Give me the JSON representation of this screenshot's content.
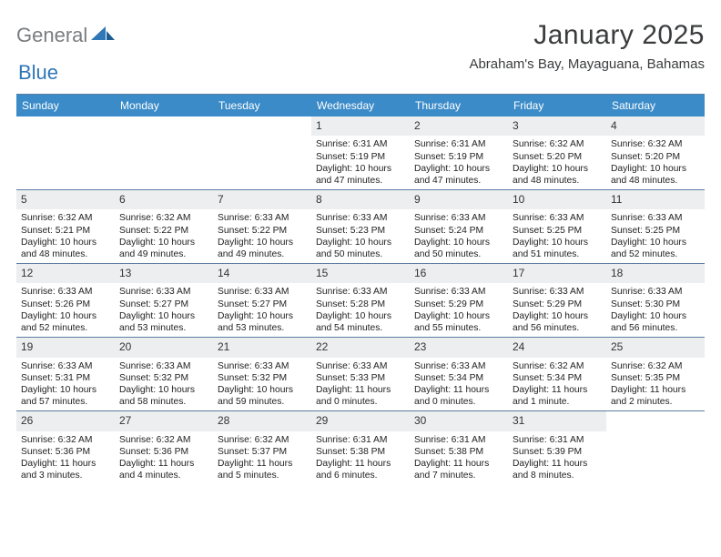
{
  "logo": {
    "text1": "General",
    "text2": "Blue"
  },
  "title": "January 2025",
  "location": "Abraham's Bay, Mayaguana, Bahamas",
  "colors": {
    "header_bg": "#3b8bc8",
    "header_text": "#ffffff",
    "daynum_bg": "#eceeef",
    "rule": "#5c7ea2",
    "logo_gray": "#7a7d80",
    "logo_blue": "#2f77b6"
  },
  "day_headers": [
    "Sunday",
    "Monday",
    "Tuesday",
    "Wednesday",
    "Thursday",
    "Friday",
    "Saturday"
  ],
  "weeks": [
    [
      {
        "empty": true
      },
      {
        "empty": true
      },
      {
        "empty": true
      },
      {
        "num": "1",
        "sunrise": "Sunrise: 6:31 AM",
        "sunset": "Sunset: 5:19 PM",
        "day1": "Daylight: 10 hours",
        "day2": "and 47 minutes."
      },
      {
        "num": "2",
        "sunrise": "Sunrise: 6:31 AM",
        "sunset": "Sunset: 5:19 PM",
        "day1": "Daylight: 10 hours",
        "day2": "and 47 minutes."
      },
      {
        "num": "3",
        "sunrise": "Sunrise: 6:32 AM",
        "sunset": "Sunset: 5:20 PM",
        "day1": "Daylight: 10 hours",
        "day2": "and 48 minutes."
      },
      {
        "num": "4",
        "sunrise": "Sunrise: 6:32 AM",
        "sunset": "Sunset: 5:20 PM",
        "day1": "Daylight: 10 hours",
        "day2": "and 48 minutes."
      }
    ],
    [
      {
        "num": "5",
        "sunrise": "Sunrise: 6:32 AM",
        "sunset": "Sunset: 5:21 PM",
        "day1": "Daylight: 10 hours",
        "day2": "and 48 minutes."
      },
      {
        "num": "6",
        "sunrise": "Sunrise: 6:32 AM",
        "sunset": "Sunset: 5:22 PM",
        "day1": "Daylight: 10 hours",
        "day2": "and 49 minutes."
      },
      {
        "num": "7",
        "sunrise": "Sunrise: 6:33 AM",
        "sunset": "Sunset: 5:22 PM",
        "day1": "Daylight: 10 hours",
        "day2": "and 49 minutes."
      },
      {
        "num": "8",
        "sunrise": "Sunrise: 6:33 AM",
        "sunset": "Sunset: 5:23 PM",
        "day1": "Daylight: 10 hours",
        "day2": "and 50 minutes."
      },
      {
        "num": "9",
        "sunrise": "Sunrise: 6:33 AM",
        "sunset": "Sunset: 5:24 PM",
        "day1": "Daylight: 10 hours",
        "day2": "and 50 minutes."
      },
      {
        "num": "10",
        "sunrise": "Sunrise: 6:33 AM",
        "sunset": "Sunset: 5:25 PM",
        "day1": "Daylight: 10 hours",
        "day2": "and 51 minutes."
      },
      {
        "num": "11",
        "sunrise": "Sunrise: 6:33 AM",
        "sunset": "Sunset: 5:25 PM",
        "day1": "Daylight: 10 hours",
        "day2": "and 52 minutes."
      }
    ],
    [
      {
        "num": "12",
        "sunrise": "Sunrise: 6:33 AM",
        "sunset": "Sunset: 5:26 PM",
        "day1": "Daylight: 10 hours",
        "day2": "and 52 minutes."
      },
      {
        "num": "13",
        "sunrise": "Sunrise: 6:33 AM",
        "sunset": "Sunset: 5:27 PM",
        "day1": "Daylight: 10 hours",
        "day2": "and 53 minutes."
      },
      {
        "num": "14",
        "sunrise": "Sunrise: 6:33 AM",
        "sunset": "Sunset: 5:27 PM",
        "day1": "Daylight: 10 hours",
        "day2": "and 53 minutes."
      },
      {
        "num": "15",
        "sunrise": "Sunrise: 6:33 AM",
        "sunset": "Sunset: 5:28 PM",
        "day1": "Daylight: 10 hours",
        "day2": "and 54 minutes."
      },
      {
        "num": "16",
        "sunrise": "Sunrise: 6:33 AM",
        "sunset": "Sunset: 5:29 PM",
        "day1": "Daylight: 10 hours",
        "day2": "and 55 minutes."
      },
      {
        "num": "17",
        "sunrise": "Sunrise: 6:33 AM",
        "sunset": "Sunset: 5:29 PM",
        "day1": "Daylight: 10 hours",
        "day2": "and 56 minutes."
      },
      {
        "num": "18",
        "sunrise": "Sunrise: 6:33 AM",
        "sunset": "Sunset: 5:30 PM",
        "day1": "Daylight: 10 hours",
        "day2": "and 56 minutes."
      }
    ],
    [
      {
        "num": "19",
        "sunrise": "Sunrise: 6:33 AM",
        "sunset": "Sunset: 5:31 PM",
        "day1": "Daylight: 10 hours",
        "day2": "and 57 minutes."
      },
      {
        "num": "20",
        "sunrise": "Sunrise: 6:33 AM",
        "sunset": "Sunset: 5:32 PM",
        "day1": "Daylight: 10 hours",
        "day2": "and 58 minutes."
      },
      {
        "num": "21",
        "sunrise": "Sunrise: 6:33 AM",
        "sunset": "Sunset: 5:32 PM",
        "day1": "Daylight: 10 hours",
        "day2": "and 59 minutes."
      },
      {
        "num": "22",
        "sunrise": "Sunrise: 6:33 AM",
        "sunset": "Sunset: 5:33 PM",
        "day1": "Daylight: 11 hours",
        "day2": "and 0 minutes."
      },
      {
        "num": "23",
        "sunrise": "Sunrise: 6:33 AM",
        "sunset": "Sunset: 5:34 PM",
        "day1": "Daylight: 11 hours",
        "day2": "and 0 minutes."
      },
      {
        "num": "24",
        "sunrise": "Sunrise: 6:32 AM",
        "sunset": "Sunset: 5:34 PM",
        "day1": "Daylight: 11 hours",
        "day2": "and 1 minute."
      },
      {
        "num": "25",
        "sunrise": "Sunrise: 6:32 AM",
        "sunset": "Sunset: 5:35 PM",
        "day1": "Daylight: 11 hours",
        "day2": "and 2 minutes."
      }
    ],
    [
      {
        "num": "26",
        "sunrise": "Sunrise: 6:32 AM",
        "sunset": "Sunset: 5:36 PM",
        "day1": "Daylight: 11 hours",
        "day2": "and 3 minutes."
      },
      {
        "num": "27",
        "sunrise": "Sunrise: 6:32 AM",
        "sunset": "Sunset: 5:36 PM",
        "day1": "Daylight: 11 hours",
        "day2": "and 4 minutes."
      },
      {
        "num": "28",
        "sunrise": "Sunrise: 6:32 AM",
        "sunset": "Sunset: 5:37 PM",
        "day1": "Daylight: 11 hours",
        "day2": "and 5 minutes."
      },
      {
        "num": "29",
        "sunrise": "Sunrise: 6:31 AM",
        "sunset": "Sunset: 5:38 PM",
        "day1": "Daylight: 11 hours",
        "day2": "and 6 minutes."
      },
      {
        "num": "30",
        "sunrise": "Sunrise: 6:31 AM",
        "sunset": "Sunset: 5:38 PM",
        "day1": "Daylight: 11 hours",
        "day2": "and 7 minutes."
      },
      {
        "num": "31",
        "sunrise": "Sunrise: 6:31 AM",
        "sunset": "Sunset: 5:39 PM",
        "day1": "Daylight: 11 hours",
        "day2": "and 8 minutes."
      },
      {
        "empty": true
      }
    ]
  ]
}
